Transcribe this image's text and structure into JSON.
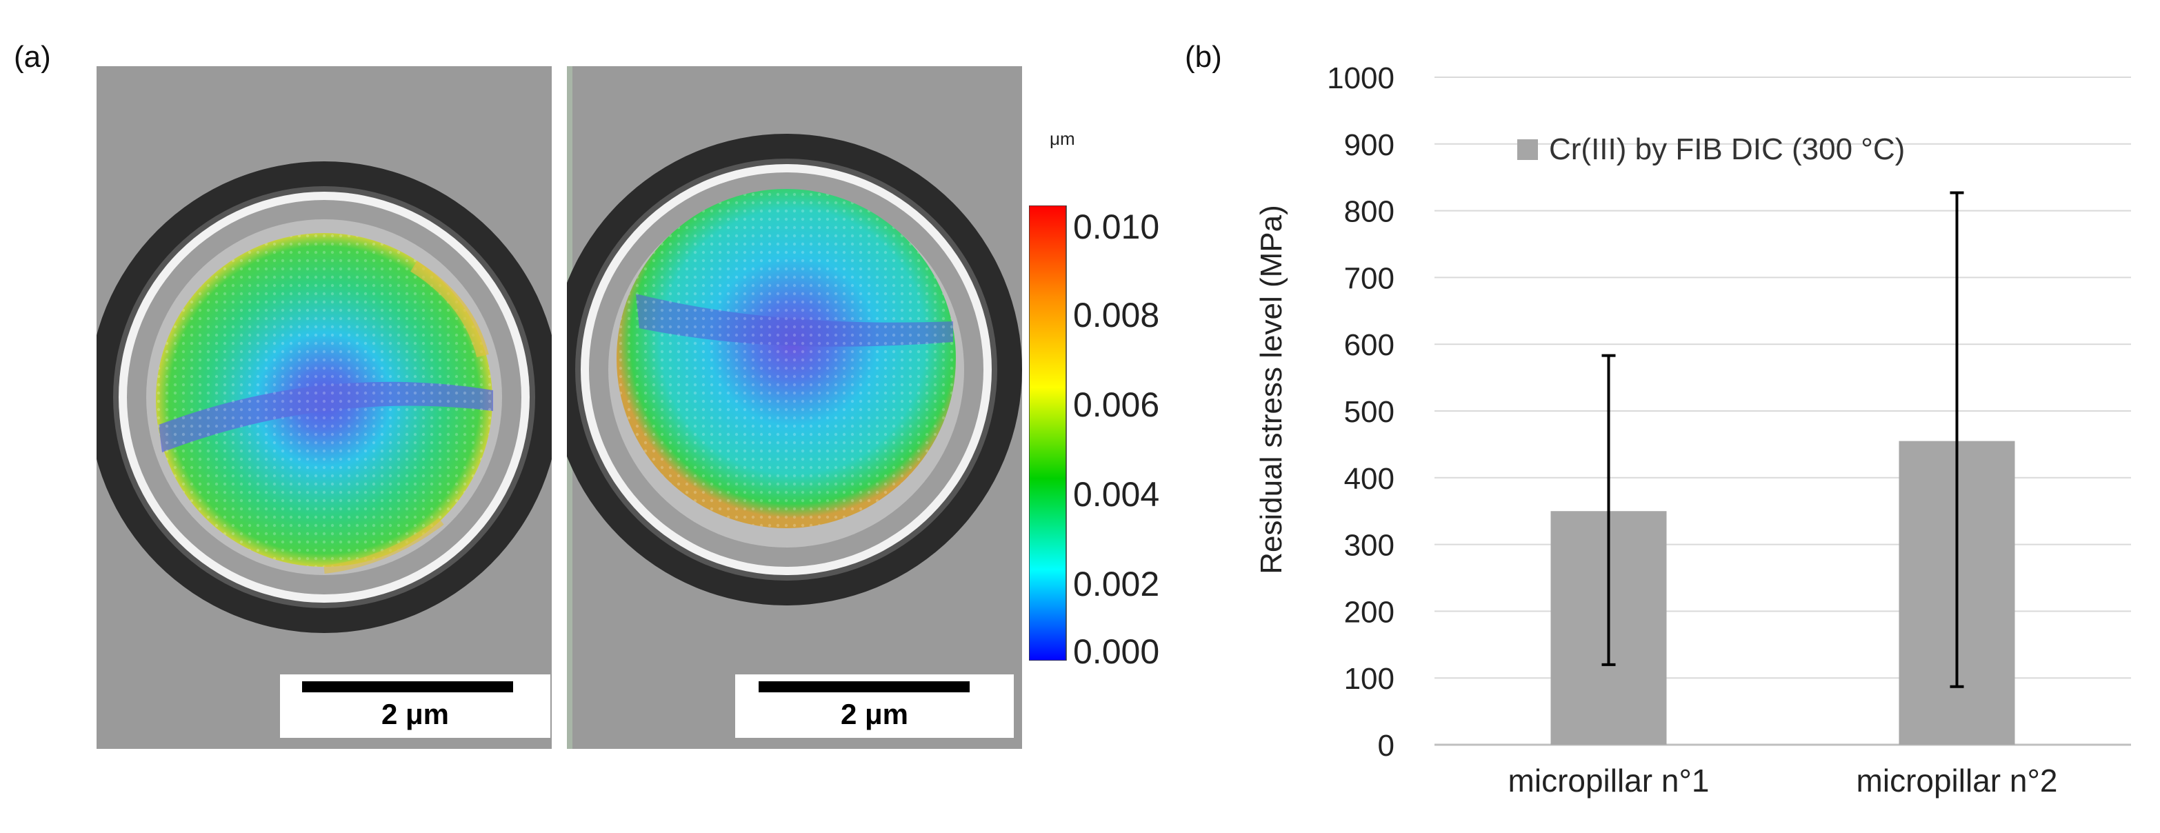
{
  "panel_a": {
    "label": "(a)",
    "scalebar_left": "2 μm",
    "scalebar_right": "2 μm",
    "colorbar": {
      "unit": "μm",
      "ticks": [
        "0.010",
        "0.008",
        "0.006",
        "0.004",
        "0.002",
        "0.000"
      ],
      "colors": [
        "#ff0000",
        "#ff8c00",
        "#ffff00",
        "#00d000",
        "#00ffff",
        "#0000ff"
      ]
    }
  },
  "panel_b": {
    "label": "(b)"
  },
  "chart_data": {
    "type": "bar",
    "categories": [
      "micropillar n°1",
      "micropillar n°2"
    ],
    "series": [
      {
        "name": "Cr(III) by FIB DIC (300 °C)",
        "values": [
          350,
          455
        ],
        "error_low": [
          120,
          87
        ],
        "error_high": [
          583,
          827
        ],
        "color": "#a6a6a6"
      }
    ],
    "ylabel": "Residual stress level (MPa)",
    "ylim": [
      0,
      1000
    ],
    "yticks": [
      0,
      100,
      200,
      300,
      400,
      500,
      600,
      700,
      800,
      900,
      1000
    ],
    "grid": true,
    "legend_position": "top"
  }
}
